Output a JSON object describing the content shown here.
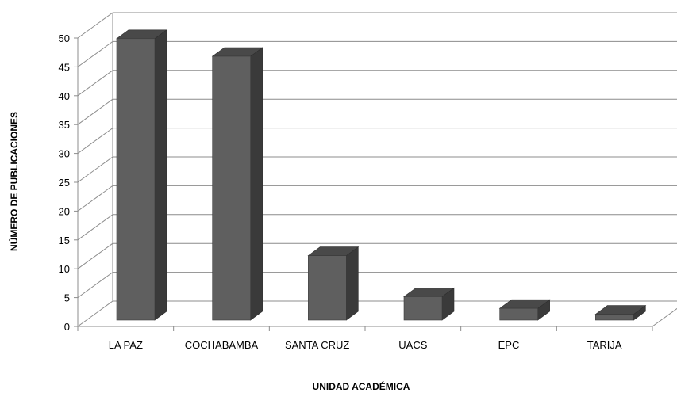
{
  "chart_data": {
    "type": "bar",
    "categories": [
      "LA PAZ",
      "COCHABAMBA",
      "SANTA CRUZ",
      "UACS",
      "EPC",
      "TARIJA"
    ],
    "values": [
      48,
      45,
      11,
      4,
      2,
      1
    ],
    "xlabel": "UNIDAD ACADÉMICA",
    "ylabel": "NÚMERO DE PUBLICACIONES",
    "ylim": [
      0,
      50
    ],
    "yticks": [
      0,
      5,
      10,
      15,
      20,
      25,
      30,
      35,
      40,
      45,
      50
    ],
    "grid": true,
    "style": "3d-column",
    "colors": {
      "bar_front": "#5f5f5f",
      "bar_side": "#3a3a3a",
      "bar_top": "#494949",
      "grid": "#8c8c8c"
    }
  }
}
